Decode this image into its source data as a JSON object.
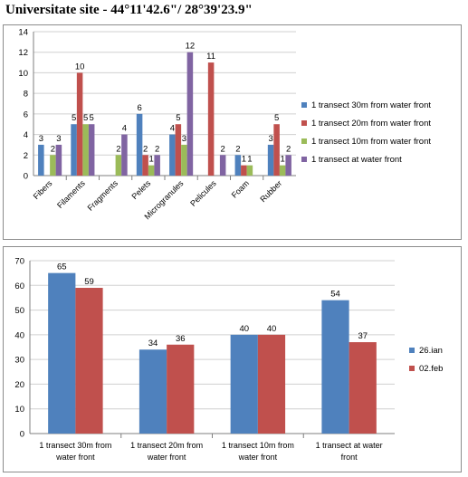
{
  "page_title": "Universitate site - 44°11'42.6\"/ 28°39'23.9\"",
  "colors": {
    "blue": "#4f81bd",
    "red": "#c0504d",
    "green": "#9bbb59",
    "purple": "#8064a2",
    "grid": "#d0d0d0",
    "axis": "#7f7f7f"
  },
  "chart_data": [
    {
      "type": "bar",
      "title": "",
      "xlabel": "",
      "ylabel": "",
      "ylim": [
        0,
        14
      ],
      "yticks": [
        0,
        2,
        4,
        6,
        8,
        10,
        12,
        14
      ],
      "grid": true,
      "legend_position": "right",
      "categories": [
        "Fibers",
        "Filaments",
        "Fragments",
        "Pelets",
        "Microgranules",
        "Pelicules",
        "Foam",
        "Rubber"
      ],
      "series": [
        {
          "name": "1  transect 30m  from water front",
          "color": "blue",
          "values": [
            3,
            5,
            null,
            6,
            4,
            null,
            2,
            3
          ]
        },
        {
          "name": "1  transect 20m  from water front",
          "color": "red",
          "values": [
            null,
            10,
            null,
            2,
            5,
            11,
            1,
            5
          ]
        },
        {
          "name": "1  transect 10m  from water front",
          "color": "green",
          "values": [
            2,
            5,
            2,
            1,
            3,
            null,
            1,
            1
          ]
        },
        {
          "name": "1  transect at water front",
          "color": "purple",
          "values": [
            3,
            5,
            4,
            2,
            12,
            2,
            null,
            2
          ]
        }
      ]
    },
    {
      "type": "bar",
      "title": "",
      "xlabel": "",
      "ylabel": "",
      "ylim": [
        0,
        70
      ],
      "yticks": [
        0,
        10,
        20,
        30,
        40,
        50,
        60,
        70
      ],
      "grid": true,
      "legend_position": "right",
      "categories": [
        [
          "1  transect 30m  from",
          "water front"
        ],
        [
          "1  transect 20m  from",
          "water front"
        ],
        [
          "1  transect 10m  from",
          "water front"
        ],
        [
          "1  transect at water",
          "front"
        ]
      ],
      "series": [
        {
          "name": "26.ian",
          "color": "blue",
          "values": [
            65,
            34,
            40,
            54
          ]
        },
        {
          "name": "02.feb",
          "color": "red",
          "values": [
            59,
            36,
            40,
            37
          ]
        }
      ]
    }
  ]
}
